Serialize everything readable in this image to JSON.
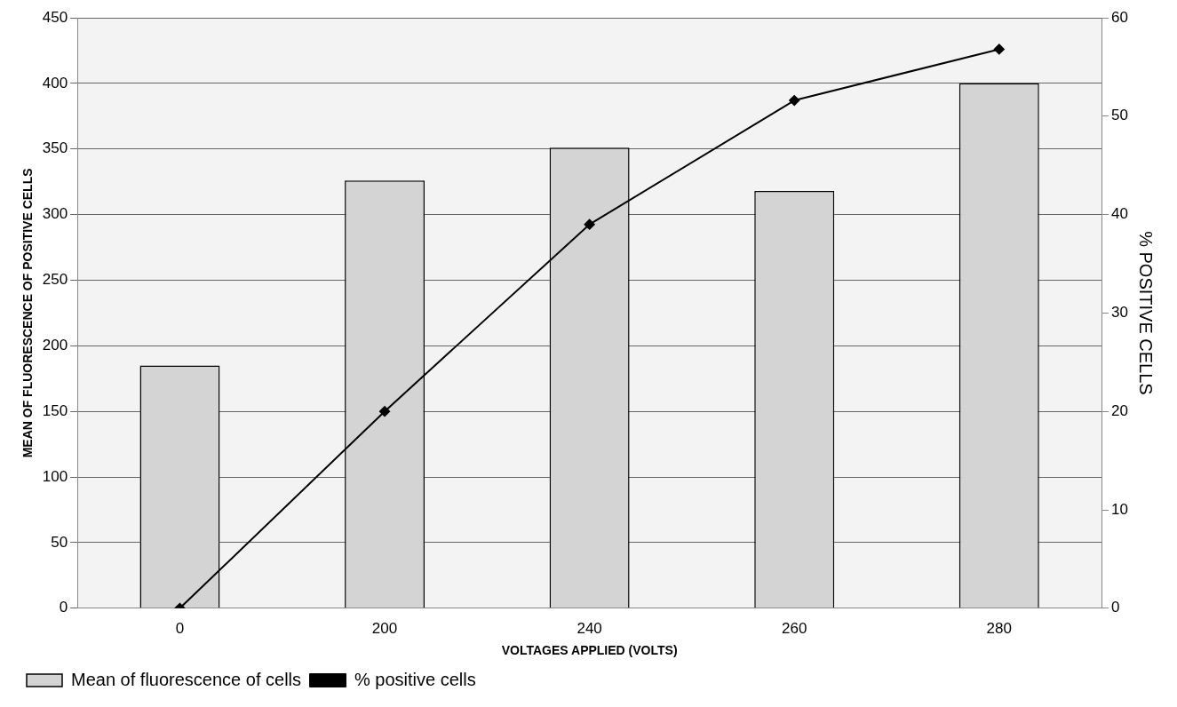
{
  "chart_data": {
    "type": "bar",
    "xlabel": "VOLTAGES APPLIED (VOLTS)",
    "ylabel": "MEAN OF FLUORESCENCE OF POSITIVE CELLS",
    "y2label": "% POSITIVE CELLS",
    "categories": [
      "0",
      "200",
      "240",
      "260",
      "280"
    ],
    "series": [
      {
        "name": "Mean of fluorescence of cells",
        "color": "#d4d4d4",
        "values": [
          185,
          326,
          351,
          318,
          400
        ]
      },
      {
        "name": "% positive cells",
        "type": "line",
        "axis": "y2",
        "color": "#000000",
        "marker": "diamond",
        "values": [
          0,
          20,
          39,
          51.6,
          56.8
        ]
      }
    ],
    "ylim": [
      0,
      450
    ],
    "yticks": [
      0,
      50,
      100,
      150,
      200,
      250,
      300,
      350,
      400,
      450
    ],
    "y2lim": [
      0,
      60
    ],
    "y2ticks": [
      0,
      10,
      20,
      30,
      40,
      50,
      60
    ],
    "grid": "y",
    "legend": "bottom left"
  }
}
